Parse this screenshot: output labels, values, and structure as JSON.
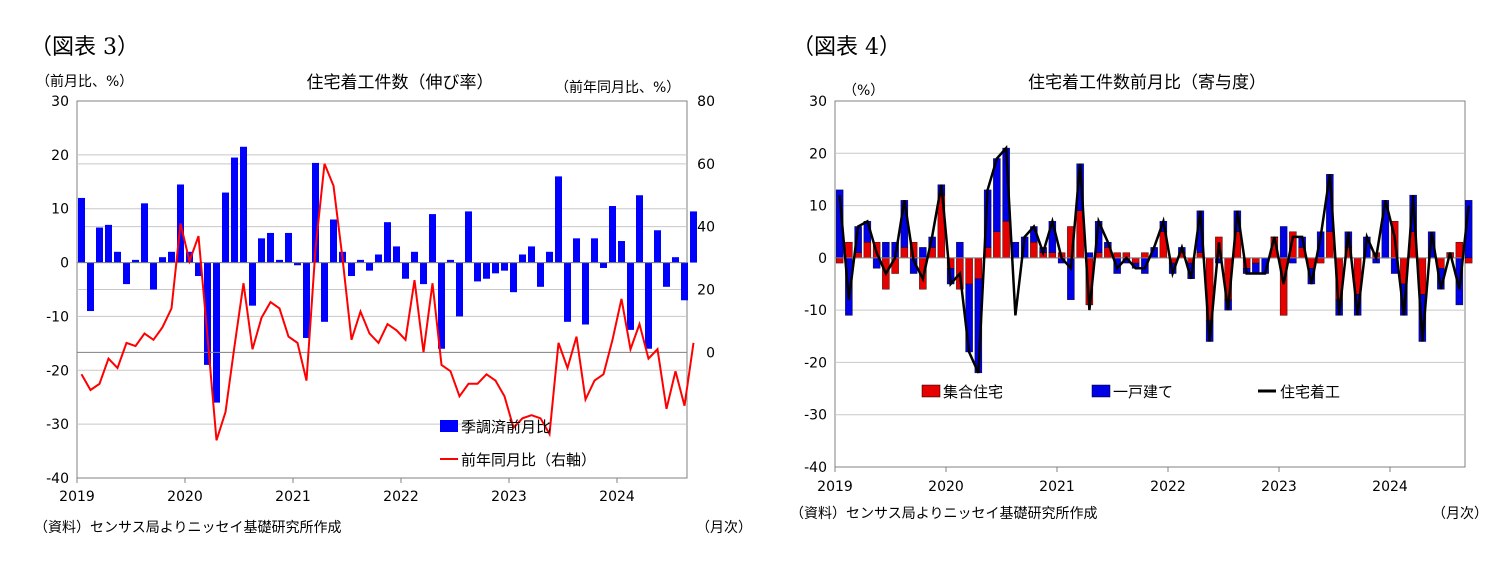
{
  "figure3": {
    "fig_label": "（図表 3）",
    "source_note": "（資料）センサス局よりニッセイ基礎研究所作成",
    "month_note": "（月次）",
    "chart_data": {
      "type": "bar+line",
      "title": "住宅着工件数（伸び率）",
      "ylabel_left": "（前月比、%）",
      "ylabel_right": "（前年同月比、%）",
      "left_ylim": [
        -40,
        30
      ],
      "left_ticks": [
        "30",
        "20",
        "10",
        "0",
        "-10",
        "-20",
        "-30",
        "-40"
      ],
      "right_ylim": [
        -40,
        80
      ],
      "right_ticks": [
        "80",
        "60",
        "40",
        "20",
        "0"
      ],
      "x_start": "2019-01",
      "x_labels": [
        "2019",
        "2020",
        "2021",
        "2022",
        "2023",
        "2024"
      ],
      "grid": true,
      "legend_position": "bottom-right",
      "series": [
        {
          "name": "季調済前月比",
          "kind": "bar",
          "axis": "left",
          "color": "#0000FF",
          "values": [
            12,
            -9,
            6.5,
            7,
            2,
            -4,
            0.5,
            11,
            -5,
            1,
            2,
            14.5,
            2,
            -2.5,
            -19,
            -26,
            13,
            19.5,
            21.5,
            -8,
            4.5,
            5.5,
            0.5,
            5.5,
            -0.5,
            -14,
            18.5,
            -11,
            8,
            2,
            -2.5,
            0.5,
            -1.5,
            1.5,
            7.5,
            3,
            -3,
            2,
            -4,
            9,
            -16,
            0.5,
            -10,
            9.5,
            -3.5,
            -3,
            -2,
            -1.5,
            -5.5,
            1.5,
            3,
            -4.5,
            2,
            16,
            -11,
            4.5,
            -11.5,
            4.5,
            -1,
            10.5,
            4,
            -12.5,
            12.5,
            -16,
            6,
            -4.5,
            1,
            -7,
            9.5
          ]
        },
        {
          "name": "前年同月比（右軸）",
          "kind": "line",
          "axis": "right",
          "color": "#FF0000",
          "values": [
            -7,
            -12,
            -10,
            -2,
            -5,
            3,
            2,
            6,
            4,
            8,
            14,
            41,
            29,
            37,
            5,
            -28,
            -19,
            2,
            22,
            1,
            11,
            16,
            14,
            5,
            3,
            -9,
            33,
            60,
            53,
            30,
            4,
            13,
            6,
            3,
            9,
            7,
            4,
            23,
            0,
            22,
            -4,
            -6,
            -14,
            -10,
            -10,
            -7,
            -9,
            -14,
            -24,
            -21,
            -20,
            -21,
            -26,
            3,
            -5,
            5,
            -15,
            -9,
            -7,
            4,
            17,
            1,
            9,
            -2,
            1,
            -18,
            -6,
            -17,
            3
          ]
        }
      ]
    }
  },
  "figure4": {
    "fig_label": "（図表 4）",
    "source_note": "（資料）センサス局よりニッセイ基礎研究所作成",
    "month_note": "（月次）",
    "chart_data": {
      "type": "stacked-bar+line",
      "title": "住宅着工件数前月比（寄与度）",
      "ylabel": "（%）",
      "ylim": [
        -40,
        30
      ],
      "y_ticks": [
        "30",
        "20",
        "10",
        "0",
        "-10",
        "-20",
        "-30",
        "-40"
      ],
      "x_start": "2019-01",
      "x_labels": [
        "2019",
        "2020",
        "2021",
        "2022",
        "2023",
        "2024"
      ],
      "grid": true,
      "legend_position": "bottom",
      "series": [
        {
          "name": "集合住宅",
          "kind": "bar",
          "color": "#E60000",
          "values": [
            -1,
            3,
            1,
            3,
            3,
            -6,
            -3,
            2,
            3,
            -6,
            2,
            12,
            -2,
            -6,
            -5,
            -4,
            2,
            5,
            7,
            0,
            0,
            3,
            1,
            1,
            1,
            6,
            9,
            -9,
            1,
            2,
            1,
            1,
            -1,
            1,
            0,
            5,
            -1,
            1,
            -1,
            1,
            -12,
            4,
            -8,
            5,
            -2,
            -1,
            0,
            4,
            -11,
            5,
            2,
            -2,
            -1,
            5,
            -8,
            2,
            -7,
            0,
            1,
            0,
            7,
            -5,
            5,
            -7,
            0,
            -2,
            1,
            3,
            -1
          ]
        },
        {
          "name": "一戸建て",
          "kind": "bar",
          "color": "#0000E6",
          "values": [
            13,
            -11,
            5,
            4,
            -2,
            3,
            3,
            9,
            -3,
            2,
            2,
            2,
            -3,
            3,
            -13,
            -18,
            11,
            14,
            14,
            3,
            4,
            3,
            1,
            6,
            -1,
            -8,
            9,
            1,
            6,
            1,
            -3,
            -1,
            -1,
            -3,
            2,
            2,
            -2,
            1,
            -3,
            8,
            -4,
            -1,
            -2,
            4,
            -1,
            -2,
            -3,
            0,
            6,
            -1,
            2,
            -3,
            5,
            11,
            -3,
            3,
            -4,
            4,
            -1,
            11,
            -3,
            -6,
            7,
            -9,
            5,
            -4,
            0,
            -9,
            11
          ]
        },
        {
          "name": "住宅着工",
          "kind": "line",
          "color": "#000000",
          "values": [
            12,
            -8,
            6,
            7,
            1,
            -3,
            0,
            11,
            -0.5,
            -4,
            4,
            14,
            -5,
            -3,
            -18,
            -22,
            13,
            19,
            21,
            -11,
            4,
            6,
            1,
            7,
            0,
            -2,
            18,
            -10,
            7,
            3,
            -2,
            0,
            -2,
            -2,
            2,
            7,
            -3,
            2,
            -4,
            9,
            -16,
            3,
            -10,
            9,
            -3,
            -3,
            -3,
            4,
            -5,
            4,
            4,
            -5,
            4,
            16,
            -11,
            5,
            -11,
            4,
            0,
            11,
            4,
            -11,
            12,
            -16,
            5,
            -6,
            1,
            -6,
            10
          ]
        }
      ]
    }
  }
}
